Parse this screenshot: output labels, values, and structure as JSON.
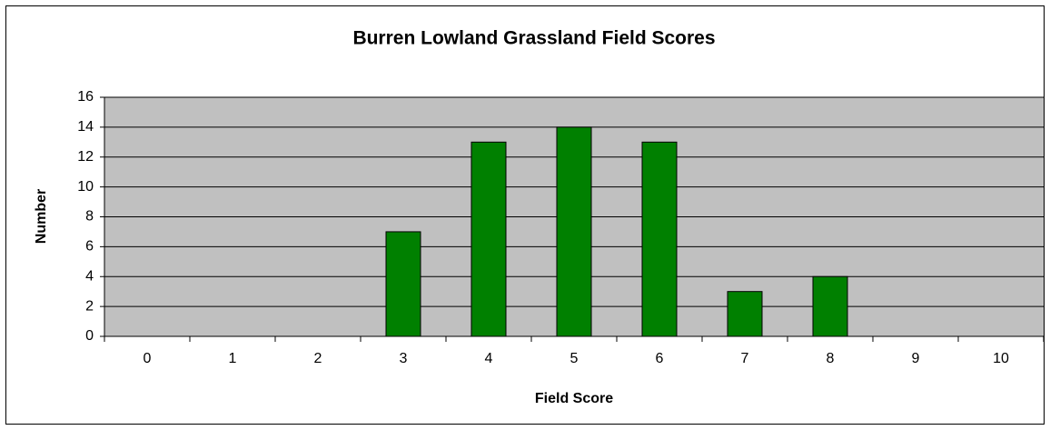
{
  "chart_data": {
    "type": "bar",
    "title": "Burren Lowland Grassland Field Scores",
    "x_label": "Field Score",
    "y_label": "Number",
    "categories": [
      "0",
      "1",
      "2",
      "3",
      "4",
      "5",
      "6",
      "7",
      "8",
      "9",
      "10"
    ],
    "values": [
      0,
      0,
      0,
      7,
      13,
      14,
      13,
      3,
      4,
      0,
      0
    ],
    "color": "#008000",
    "ylim": [
      0,
      16
    ],
    "yticks": [
      0,
      2,
      4,
      6,
      8,
      10,
      12,
      14,
      16
    ],
    "grid": true
  }
}
